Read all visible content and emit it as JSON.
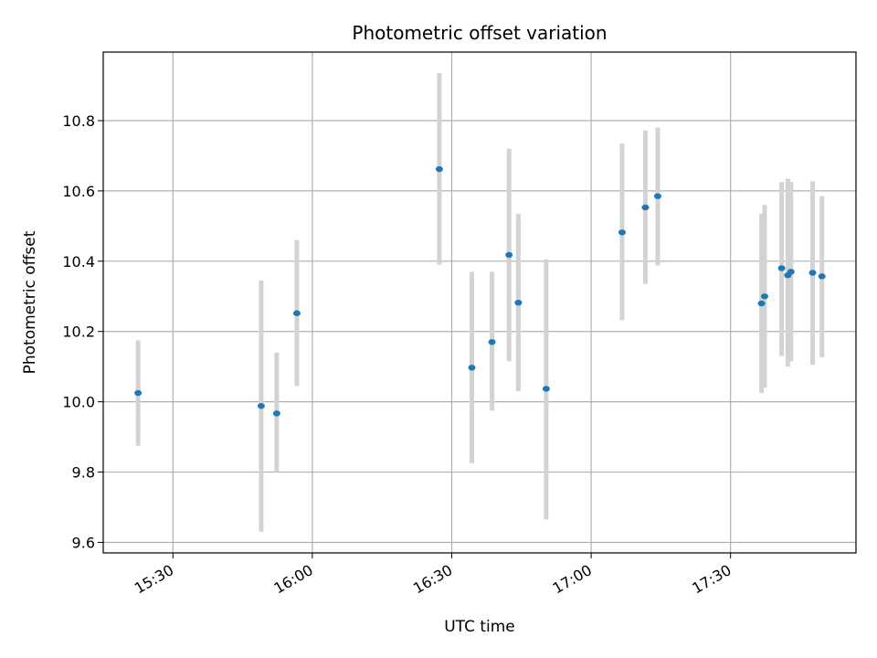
{
  "chart_data": {
    "type": "scatter",
    "title": "Photometric offset variation",
    "xlabel": "UTC time",
    "ylabel": "Photometric offset",
    "grid": true,
    "x_ticks": [
      "15:30",
      "16:00",
      "16:30",
      "17:00",
      "17:30"
    ],
    "y_ticks": [
      "9.6",
      "9.8",
      "10.0",
      "10.2",
      "10.4",
      "10.6",
      "10.8"
    ],
    "colors": {
      "points": "#1f77b4",
      "errorbars": "#d3d3d3",
      "grid": "#b0b0b0"
    },
    "points": [
      {
        "x": "15:22:30",
        "y": 10.025,
        "lo": 9.875,
        "hi": 10.175
      },
      {
        "x": "15:49:00",
        "y": 9.988,
        "lo": 9.63,
        "hi": 10.345
      },
      {
        "x": "15:52:20",
        "y": 9.967,
        "lo": 9.8,
        "hi": 10.14
      },
      {
        "x": "15:56:40",
        "y": 10.252,
        "lo": 10.045,
        "hi": 10.46
      },
      {
        "x": "16:27:20",
        "y": 10.662,
        "lo": 10.39,
        "hi": 10.935
      },
      {
        "x": "16:34:20",
        "y": 10.097,
        "lo": 9.825,
        "hi": 10.37
      },
      {
        "x": "16:38:40",
        "y": 10.17,
        "lo": 9.975,
        "hi": 10.37
      },
      {
        "x": "16:42:20",
        "y": 10.418,
        "lo": 10.115,
        "hi": 10.72
      },
      {
        "x": "16:44:20",
        "y": 10.282,
        "lo": 10.03,
        "hi": 10.535
      },
      {
        "x": "16:50:20",
        "y": 10.037,
        "lo": 9.665,
        "hi": 10.405
      },
      {
        "x": "17:06:40",
        "y": 10.482,
        "lo": 10.232,
        "hi": 10.735
      },
      {
        "x": "17:11:40",
        "y": 10.553,
        "lo": 10.335,
        "hi": 10.772
      },
      {
        "x": "17:14:20",
        "y": 10.585,
        "lo": 10.388,
        "hi": 10.78
      },
      {
        "x": "17:36:40",
        "y": 10.28,
        "lo": 10.025,
        "hi": 10.535
      },
      {
        "x": "17:37:20",
        "y": 10.3,
        "lo": 10.04,
        "hi": 10.56
      },
      {
        "x": "17:41:00",
        "y": 10.38,
        "lo": 10.13,
        "hi": 10.625
      },
      {
        "x": "17:42:20",
        "y": 10.36,
        "lo": 10.1,
        "hi": 10.635
      },
      {
        "x": "17:43:00",
        "y": 10.37,
        "lo": 10.115,
        "hi": 10.625
      },
      {
        "x": "17:47:40",
        "y": 10.367,
        "lo": 10.105,
        "hi": 10.627
      },
      {
        "x": "17:49:40",
        "y": 10.357,
        "lo": 10.127,
        "hi": 10.585
      }
    ]
  }
}
